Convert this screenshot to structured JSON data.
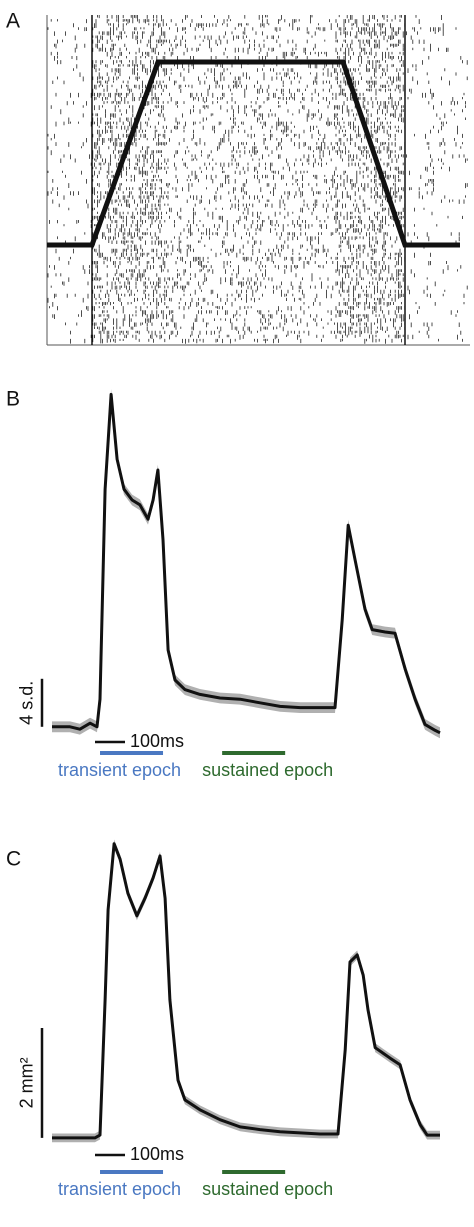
{
  "panel_a": {
    "label": "A"
  },
  "chart_data": [
    {
      "type": "line",
      "label": "B",
      "x": [
        0,
        60,
        93,
        127,
        150,
        160,
        177,
        197,
        217,
        240,
        267,
        293,
        320,
        337,
        353,
        370,
        387,
        410,
        443,
        493,
        560,
        627,
        693,
        760,
        827,
        893,
        943,
        967,
        987,
        1010,
        1043,
        1067,
        1110,
        1143,
        1177,
        1210,
        1243,
        1277,
        1293
      ],
      "series": [
        {
          "color": "#111111",
          "values": [
            0,
            0,
            -0.2,
            0.3,
            0,
            2.3,
            19.8,
            27.7,
            22.3,
            19.8,
            18.9,
            18.5,
            17.3,
            18.9,
            21.4,
            15.6,
            6.4,
            3.9,
            3.1,
            2.7,
            2.4,
            2.3,
            2,
            1.7,
            1.6,
            1.6,
            1.6,
            8.9,
            16.8,
            13.9,
            9.8,
            8.1,
            7.9,
            7.8,
            4.8,
            2.3,
            0.2,
            -0.3,
            -0.5
          ]
        }
      ],
      "error": 0.45,
      "band_color": "#b0b0b0",
      "xlim": [
        0,
        1293
      ],
      "ylim": [
        -1.1,
        28.9
      ],
      "scale_y": {
        "value": 4,
        "label": "4 s.d."
      },
      "scale_x": {
        "value": 100,
        "label": "100ms"
      },
      "epochs": [
        {
          "name": "transient epoch",
          "start": 160,
          "end": 370,
          "color": "#4a78c2"
        },
        {
          "name": "sustained epoch",
          "start": 567,
          "end": 777,
          "color": "#2e6a2e"
        }
      ]
    },
    {
      "type": "line",
      "label": "C",
      "x": [
        0,
        143,
        160,
        177,
        187,
        207,
        227,
        253,
        283,
        310,
        337,
        360,
        377,
        393,
        420,
        443,
        493,
        560,
        627,
        693,
        760,
        827,
        893,
        953,
        977,
        993,
        1017,
        1037,
        1053,
        1077,
        1127,
        1160,
        1193,
        1227,
        1250,
        1293
      ],
      "series": [
        {
          "color": "#111111",
          "values": [
            0,
            0,
            0.05,
            2.51,
            4.15,
            5.35,
            5.07,
            4.45,
            4.04,
            4.36,
            4.73,
            5.13,
            4.36,
            2.51,
            1.05,
            0.69,
            0.51,
            0.33,
            0.2,
            0.15,
            0.11,
            0.09,
            0.07,
            0.07,
            1.6,
            3.2,
            3.33,
            2.96,
            2.33,
            1.64,
            1.45,
            1.33,
            0.69,
            0.24,
            0.05,
            0.05
          ]
        }
      ],
      "error": 0.08,
      "band_color": "#b0b0b0",
      "xlim": [
        0,
        1293
      ],
      "ylim": [
        -0.13,
        5.42
      ],
      "scale_y": {
        "value": 2,
        "label": "2 mm²"
      },
      "scale_x": {
        "value": 100,
        "label": "100ms"
      },
      "epochs": [
        {
          "name": "transient epoch",
          "start": 160,
          "end": 370,
          "color": "#4a78c2"
        },
        {
          "name": "sustained epoch",
          "start": 567,
          "end": 777,
          "color": "#2e6a2e"
        }
      ]
    }
  ]
}
